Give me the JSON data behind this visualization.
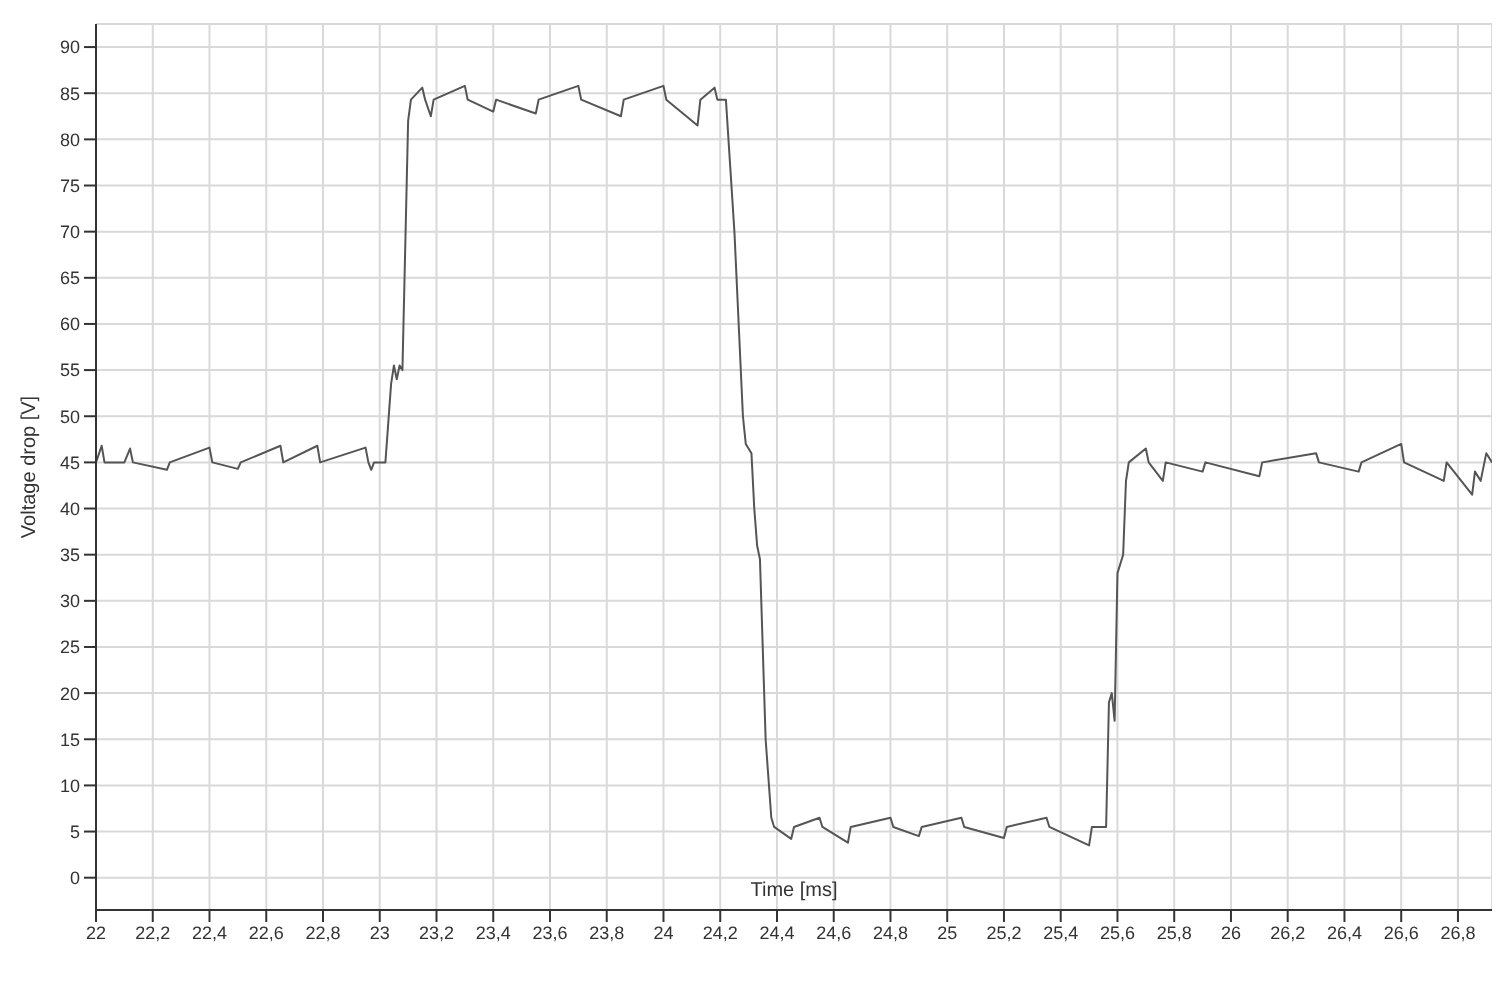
{
  "chart_data": {
    "type": "line",
    "xlabel": "Time [ms]",
    "ylabel": "Voltage drop [V]",
    "xlim": [
      22,
      26.92
    ],
    "ylim": [
      -3.5,
      92.5
    ],
    "xticks": [
      22,
      {
        "value": 22.2,
        "label": "22,2"
      },
      {
        "value": 22.4,
        "label": "22,4"
      },
      {
        "value": 22.6,
        "label": "22,6"
      },
      {
        "value": 22.8,
        "label": "22,8"
      },
      23,
      {
        "value": 23.2,
        "label": "23,2"
      },
      {
        "value": 23.4,
        "label": "23,4"
      },
      {
        "value": 23.6,
        "label": "23,6"
      },
      {
        "value": 23.8,
        "label": "23,8"
      },
      24,
      {
        "value": 24.2,
        "label": "24,2"
      },
      {
        "value": 24.4,
        "label": "24,4"
      },
      {
        "value": 24.6,
        "label": "24,6"
      },
      {
        "value": 24.8,
        "label": "24,8"
      },
      25,
      {
        "value": 25.2,
        "label": "25,2"
      },
      {
        "value": 25.4,
        "label": "25,4"
      },
      {
        "value": 25.6,
        "label": "25,6"
      },
      {
        "value": 25.8,
        "label": "25,8"
      },
      26,
      {
        "value": 26.2,
        "label": "26,2"
      },
      {
        "value": 26.4,
        "label": "26,4"
      },
      {
        "value": 26.6,
        "label": "26,6"
      },
      {
        "value": 26.8,
        "label": "26,8"
      }
    ],
    "yticks": [
      0,
      5,
      10,
      15,
      20,
      25,
      30,
      35,
      40,
      45,
      50,
      55,
      60,
      65,
      70,
      75,
      80,
      85,
      90
    ],
    "grid": true,
    "marker": "none",
    "line_style": "solid",
    "series": [
      {
        "color": "#555555",
        "x": [
          22,
          22.02,
          22.03,
          22.1,
          22.12,
          22.13,
          22.25,
          22.26,
          22.4,
          22.41,
          22.5,
          22.51,
          22.65,
          22.66,
          22.78,
          22.79,
          22.95,
          22.96,
          22.97,
          22.98,
          23.02,
          23.04,
          23.05,
          23.06,
          23.07,
          23.08,
          23.1,
          23.11,
          23.15,
          23.16,
          23.18,
          23.19,
          23.3,
          23.31,
          23.4,
          23.41,
          23.55,
          23.56,
          23.7,
          23.71,
          23.85,
          23.86,
          24.0,
          24.01,
          24.12,
          24.13,
          24.18,
          24.19,
          24.22,
          24.25,
          24.28,
          24.29,
          24.31,
          24.32,
          24.33,
          24.34,
          24.36,
          24.38,
          24.39,
          24.45,
          24.46,
          24.55,
          24.56,
          24.65,
          24.66,
          24.8,
          24.81,
          24.9,
          24.91,
          25.05,
          25.06,
          25.2,
          25.21,
          25.35,
          25.36,
          25.5,
          25.51,
          25.56,
          25.57,
          25.58,
          25.59,
          25.6,
          25.62,
          25.63,
          25.64,
          25.7,
          25.71,
          25.76,
          25.77,
          25.9,
          25.91,
          26.1,
          26.11,
          26.3,
          26.31,
          26.45,
          26.46,
          26.6,
          26.61,
          26.75,
          26.76,
          26.85,
          26.86,
          26.88,
          26.9,
          26.92
        ],
        "values": [
          45,
          46.8,
          45,
          45,
          46.5,
          45,
          44.2,
          45,
          46.6,
          45,
          44.3,
          45,
          46.8,
          45,
          46.8,
          45,
          46.6,
          45,
          44.2,
          45,
          45,
          53.5,
          55.5,
          54,
          55.5,
          55,
          82,
          84.3,
          85.6,
          84.3,
          82.5,
          84.3,
          85.8,
          84.3,
          83,
          84.3,
          82.8,
          84.3,
          85.8,
          84.3,
          82.5,
          84.3,
          85.8,
          84.3,
          81.5,
          84.3,
          85.6,
          84.3,
          84.3,
          70,
          50,
          47,
          46,
          40,
          36,
          34.5,
          15,
          6.5,
          5.5,
          4.2,
          5.5,
          6.5,
          5.5,
          3.8,
          5.5,
          6.5,
          5.5,
          4.5,
          5.5,
          6.5,
          5.5,
          4.3,
          5.5,
          6.5,
          5.5,
          3.5,
          5.5,
          5.5,
          19,
          20,
          17,
          33,
          35,
          43,
          45,
          46.5,
          45,
          43,
          45,
          44,
          45,
          43.5,
          45,
          46,
          45,
          44,
          45,
          47,
          45,
          43,
          45,
          41.5,
          44,
          43,
          46,
          45
        ]
      }
    ]
  }
}
